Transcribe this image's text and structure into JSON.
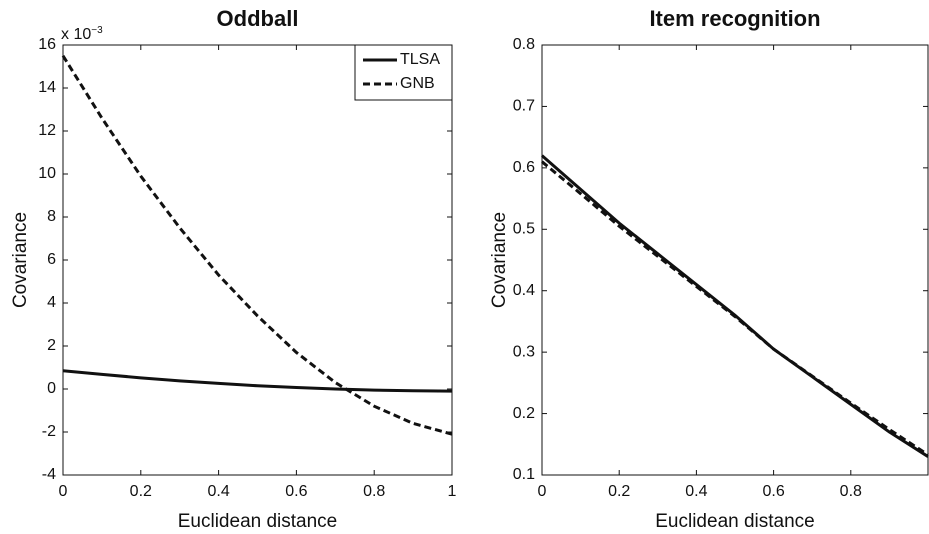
{
  "chart_data": [
    {
      "type": "line",
      "title": "Oddball",
      "x_label": "Euclidean distance",
      "y_label": "Covariance",
      "y_multiplier": {
        "base": "x 10",
        "exponent": "−3"
      },
      "x": [
        0,
        0.1,
        0.2,
        0.3,
        0.4,
        0.5,
        0.6,
        0.7,
        0.8,
        0.9,
        1.0
      ],
      "series": [
        {
          "name": "TLSA",
          "color": "#111111",
          "dashed": false,
          "values": [
            0.85,
            0.68,
            0.52,
            0.38,
            0.26,
            0.15,
            0.07,
            0.0,
            -0.05,
            -0.08,
            -0.1
          ]
        },
        {
          "name": "GNB",
          "color": "#111111",
          "dashed": true,
          "values": [
            15.5,
            12.6,
            9.9,
            7.5,
            5.3,
            3.4,
            1.7,
            0.3,
            -0.8,
            -1.6,
            -2.1
          ]
        }
      ],
      "xlim": [
        0,
        1
      ],
      "xticks": [
        0,
        0.2,
        0.4,
        0.6,
        0.8,
        1
      ],
      "ylim": [
        -4,
        16
      ],
      "yticks": [
        -4,
        -2,
        0,
        2,
        4,
        6,
        8,
        10,
        12,
        14,
        16
      ],
      "legend": "upper right",
      "grid": false
    },
    {
      "type": "line",
      "title": "Item recognition",
      "x_label": "Euclidean distance",
      "y_label": "Covariance",
      "x": [
        0,
        0.1,
        0.2,
        0.3,
        0.4,
        0.5,
        0.6,
        0.7,
        0.8,
        0.9,
        1.0
      ],
      "series": [
        {
          "name": "TLSA",
          "color": "#111111",
          "dashed": false,
          "values": [
            0.62,
            0.565,
            0.51,
            0.46,
            0.41,
            0.36,
            0.305,
            0.26,
            0.215,
            0.17,
            0.13
          ]
        },
        {
          "name": "GNB",
          "color": "#111111",
          "dashed": true,
          "values": [
            0.61,
            0.558,
            0.505,
            0.456,
            0.407,
            0.358,
            0.305,
            0.261,
            0.217,
            0.174,
            0.133
          ]
        }
      ],
      "xlim": [
        0,
        1
      ],
      "xticks": [
        0,
        0.2,
        0.4,
        0.6,
        0.8
      ],
      "ylim": [
        0.1,
        0.8
      ],
      "yticks": [
        0.1,
        0.2,
        0.3,
        0.4,
        0.5,
        0.6,
        0.7,
        0.8
      ],
      "grid": false
    }
  ]
}
